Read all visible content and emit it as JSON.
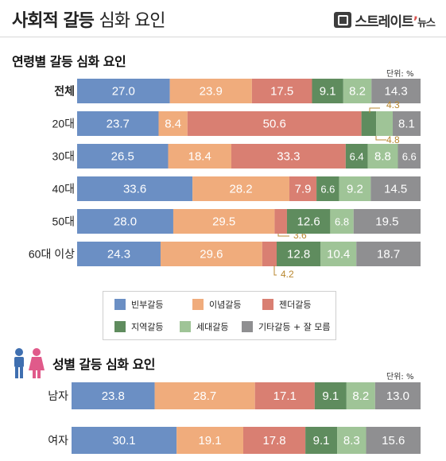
{
  "header": {
    "title_bold": "사회적 갈등",
    "title_light": "심화 요인",
    "logo_main": "스트레이트",
    "logo_sub": "뉴스"
  },
  "colors": {
    "빈부갈등": "#6b8fc4",
    "이념갈등": "#f0ac7c",
    "젠더갈등": "#d97f72",
    "지역갈등": "#5f8c5e",
    "세대갈등": "#9fc497",
    "기타갈등 + 잘 모름": "#8f8f91",
    "callout": "#b8872f"
  },
  "legend": [
    "빈부갈등",
    "이념갈등",
    "젠더갈등",
    "지역갈등",
    "세대갈등",
    "기타갈등 + 잘 모름"
  ],
  "chart_data": [
    {
      "type": "bar",
      "stacked": true,
      "orientation": "horizontal",
      "title": "연령별 갈등 심화 요인",
      "unit_label": "단위: %",
      "categories": [
        "전체",
        "20대",
        "30대",
        "40대",
        "50대",
        "60대 이상"
      ],
      "series": [
        {
          "name": "빈부갈등",
          "values": [
            27.0,
            23.7,
            26.5,
            33.6,
            28.0,
            24.3
          ]
        },
        {
          "name": "이념갈등",
          "values": [
            23.9,
            8.4,
            18.4,
            28.2,
            29.5,
            29.6
          ]
        },
        {
          "name": "젠더갈등",
          "values": [
            17.5,
            50.6,
            33.3,
            7.9,
            3.6,
            4.2
          ]
        },
        {
          "name": "지역갈등",
          "values": [
            9.1,
            4.3,
            6.4,
            6.6,
            12.6,
            12.8
          ]
        },
        {
          "name": "세대갈등",
          "values": [
            8.2,
            4.8,
            8.8,
            9.2,
            6.8,
            10.4
          ]
        },
        {
          "name": "기타갈등 + 잘 모름",
          "values": [
            14.3,
            8.1,
            6.6,
            14.5,
            19.5,
            18.7
          ]
        }
      ],
      "value_labels": [
        [
          "27.0",
          "23.9",
          "17.5",
          "9.1",
          "8.2",
          "14.3"
        ],
        [
          "23.7",
          "8.4",
          "50.6",
          "4.3",
          "4.8",
          "8.1"
        ],
        [
          "26.5",
          "18.4",
          "33.3",
          "6.4",
          "8.8",
          "6.6"
        ],
        [
          "33.6",
          "28.2",
          "7.9",
          "6.6",
          "9.2",
          "14.5"
        ],
        [
          "28.0",
          "29.5",
          "3.6",
          "12.6",
          "6.8",
          "19.5"
        ],
        [
          "24.3",
          "29.6",
          "4.2",
          "12.8",
          "10.4",
          "18.7"
        ]
      ]
    },
    {
      "type": "bar",
      "stacked": true,
      "orientation": "horizontal",
      "title": "성별 갈등 심화 요인",
      "unit_label": "단위: %",
      "categories": [
        "남자",
        "여자"
      ],
      "series": [
        {
          "name": "빈부갈등",
          "values": [
            23.8,
            30.1
          ]
        },
        {
          "name": "이념갈등",
          "values": [
            28.7,
            19.1
          ]
        },
        {
          "name": "젠더갈등",
          "values": [
            17.1,
            17.8
          ]
        },
        {
          "name": "지역갈등",
          "values": [
            9.1,
            9.1
          ]
        },
        {
          "name": "세대갈등",
          "values": [
            8.2,
            8.3
          ]
        },
        {
          "name": "기타갈등 + 잘 모름",
          "values": [
            13.0,
            15.6
          ]
        }
      ],
      "value_labels": [
        [
          "23.8",
          "28.7",
          "17.1",
          "9.1",
          "8.2",
          "13.0"
        ],
        [
          "30.1",
          "19.1",
          "17.8",
          "9.1",
          "8.3",
          "15.6"
        ]
      ]
    }
  ]
}
